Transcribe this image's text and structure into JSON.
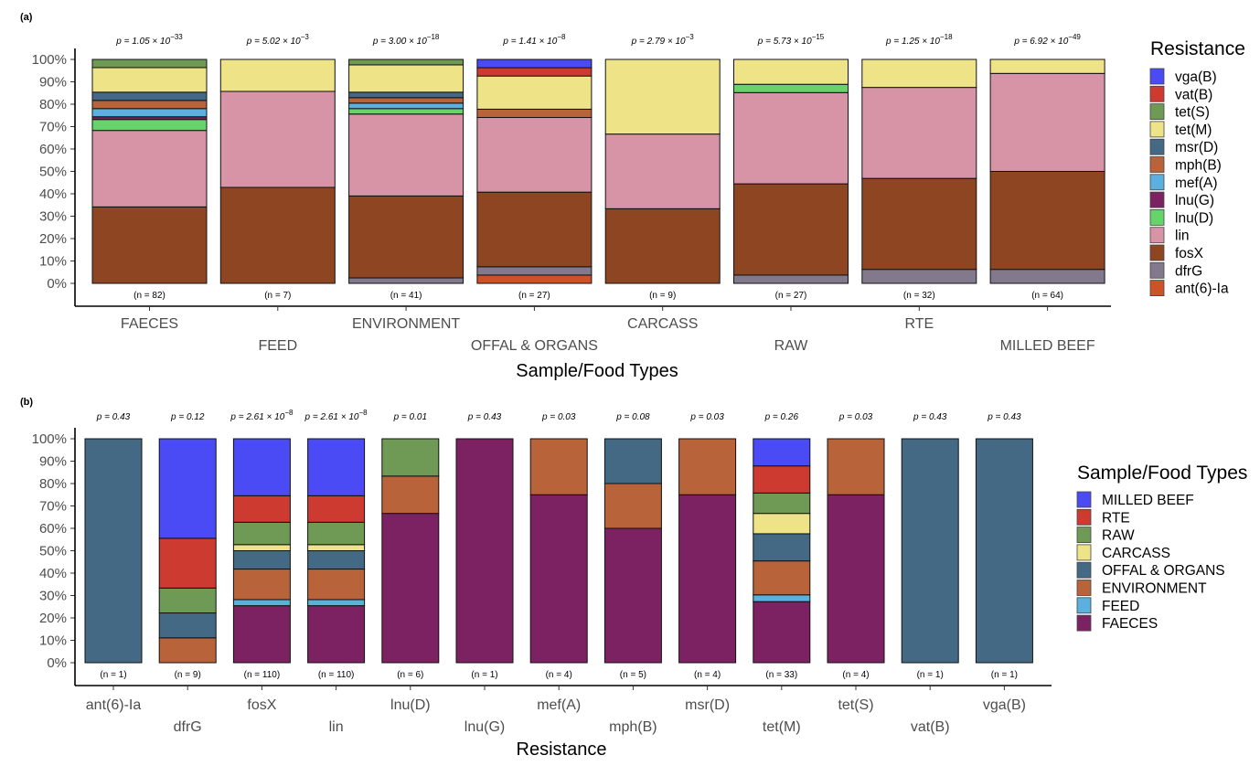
{
  "chart_data": [
    {
      "panel_label": "(a)",
      "type": "bar",
      "stacking": "percent",
      "xlabel": "Sample/Food Types",
      "ylabel": "",
      "ylim": [
        0,
        100
      ],
      "y_ticks": [
        "0%",
        "10%",
        "20%",
        "30%",
        "40%",
        "50%",
        "60%",
        "70%",
        "80%",
        "90%",
        "100%"
      ],
      "grid": false,
      "legend_title": "Resistance",
      "legend_position": "right",
      "categories": [
        "FAECES",
        "FEED",
        "ENVIRONMENT",
        "OFFAL & ORGANS",
        "CARCASS",
        "RAW",
        "RTE",
        "MILLED BEEF"
      ],
      "n_labels": [
        "(n = 82)",
        "(n = 7)",
        "(n = 41)",
        "(n = 27)",
        "(n = 9)",
        "(n = 27)",
        "(n = 32)",
        "(n = 64)"
      ],
      "p_values": [
        {
          "base": "p = 1.05 × 10",
          "exp": "−33"
        },
        {
          "base": "p = 5.02 × 10",
          "exp": "−3"
        },
        {
          "base": "p = 3.00 × 10",
          "exp": "−18"
        },
        {
          "base": "p = 1.41 × 10",
          "exp": "−8"
        },
        {
          "base": "p = 2.79 × 10",
          "exp": "−3"
        },
        {
          "base": "p = 5.73 × 10",
          "exp": "−15"
        },
        {
          "base": "p = 1.25 × 10",
          "exp": "−18"
        },
        {
          "base": "p = 6.92 × 10",
          "exp": "−49"
        }
      ],
      "series": [
        {
          "name": "ant(6)-Ia",
          "color": "#cf5227",
          "values": [
            0,
            0,
            0,
            1,
            0,
            0,
            0,
            0
          ]
        },
        {
          "name": "dfrG",
          "color": "#83798d",
          "values": [
            0,
            0,
            1,
            1,
            0,
            1,
            2,
            4
          ]
        },
        {
          "name": "fosX",
          "color": "#8e4622",
          "values": [
            28,
            3,
            15,
            9,
            3,
            11,
            13,
            28
          ]
        },
        {
          "name": "lin",
          "color": "#d694a6",
          "values": [
            28,
            3,
            15,
            9,
            3,
            11,
            13,
            28
          ]
        },
        {
          "name": "lnu(D)",
          "color": "#67d36a",
          "values": [
            4,
            0,
            1,
            0,
            0,
            1,
            0,
            0
          ]
        },
        {
          "name": "lnu(G)",
          "color": "#7c2263",
          "values": [
            1,
            0,
            0,
            0,
            0,
            0,
            0,
            0
          ]
        },
        {
          "name": "mef(A)",
          "color": "#5bb0dd",
          "values": [
            3,
            0,
            1,
            0,
            0,
            0,
            0,
            0
          ]
        },
        {
          "name": "mph(B)",
          "color": "#b8633a",
          "values": [
            3,
            0,
            1,
            1,
            0,
            0,
            0,
            0
          ]
        },
        {
          "name": "msr(D)",
          "color": "#436985",
          "values": [
            3,
            0,
            1,
            0,
            0,
            0,
            0,
            0
          ]
        },
        {
          "name": "tet(M)",
          "color": "#efe388",
          "values": [
            9,
            1,
            5,
            4,
            3,
            3,
            4,
            4
          ]
        },
        {
          "name": "tet(S)",
          "color": "#6e9a55",
          "values": [
            3,
            0,
            1,
            0,
            0,
            0,
            0,
            0
          ]
        },
        {
          "name": "vat(B)",
          "color": "#cd3a30",
          "values": [
            0,
            0,
            0,
            1,
            0,
            0,
            0,
            0
          ]
        },
        {
          "name": "vga(B)",
          "color": "#4b4bf5",
          "values": [
            0,
            0,
            0,
            1,
            0,
            0,
            0,
            0
          ]
        }
      ]
    },
    {
      "panel_label": "(b)",
      "type": "bar",
      "stacking": "percent",
      "xlabel": "Resistance",
      "ylabel": "",
      "ylim": [
        0,
        100
      ],
      "y_ticks": [
        "0%",
        "10%",
        "20%",
        "30%",
        "40%",
        "50%",
        "60%",
        "70%",
        "80%",
        "90%",
        "100%"
      ],
      "grid": false,
      "legend_title": "Sample/Food Types",
      "legend_position": "right",
      "categories": [
        "ant(6)-Ia",
        "dfrG",
        "fosX",
        "lin",
        "lnu(D)",
        "lnu(G)",
        "mef(A)",
        "mph(B)",
        "msr(D)",
        "tet(M)",
        "tet(S)",
        "vat(B)",
        "vga(B)"
      ],
      "n_labels": [
        "(n = 1)",
        "(n = 9)",
        "(n = 110)",
        "(n = 110)",
        "(n = 6)",
        "(n = 1)",
        "(n = 4)",
        "(n = 5)",
        "(n = 4)",
        "(n = 33)",
        "(n = 4)",
        "(n = 1)",
        "(n = 1)"
      ],
      "p_values": [
        {
          "base": "p = 0.43",
          "exp": ""
        },
        {
          "base": "p = 0.12",
          "exp": ""
        },
        {
          "base": "p = 2.61 × 10",
          "exp": "−8"
        },
        {
          "base": "p = 2.61 × 10",
          "exp": "−8"
        },
        {
          "base": "p = 0.01",
          "exp": ""
        },
        {
          "base": "p = 0.43",
          "exp": ""
        },
        {
          "base": "p = 0.03",
          "exp": ""
        },
        {
          "base": "p = 0.08",
          "exp": ""
        },
        {
          "base": "p = 0.03",
          "exp": ""
        },
        {
          "base": "p = 0.26",
          "exp": ""
        },
        {
          "base": "p = 0.03",
          "exp": ""
        },
        {
          "base": "p = 0.43",
          "exp": ""
        },
        {
          "base": "p = 0.43",
          "exp": ""
        }
      ],
      "series": [
        {
          "name": "FAECES",
          "color": "#7c2263",
          "values": [
            0,
            0,
            28,
            28,
            4,
            1,
            3,
            3,
            3,
            9,
            3,
            0,
            0
          ]
        },
        {
          "name": "FEED",
          "color": "#5bb0dd",
          "values": [
            0,
            0,
            3,
            3,
            0,
            0,
            0,
            0,
            0,
            1,
            0,
            0,
            0
          ]
        },
        {
          "name": "ENVIRONMENT",
          "color": "#b8633a",
          "values": [
            0,
            1,
            15,
            15,
            1,
            0,
            1,
            1,
            1,
            5,
            1,
            0,
            0
          ]
        },
        {
          "name": "OFFAL & ORGANS",
          "color": "#436985",
          "values": [
            1,
            1,
            9,
            9,
            0,
            0,
            0,
            1,
            0,
            4,
            0,
            1,
            1
          ]
        },
        {
          "name": "CARCASS",
          "color": "#efe388",
          "values": [
            0,
            0,
            3,
            3,
            0,
            0,
            0,
            0,
            0,
            3,
            0,
            0,
            0
          ]
        },
        {
          "name": "RAW",
          "color": "#6e9a55",
          "values": [
            0,
            1,
            11,
            11,
            1,
            0,
            0,
            0,
            0,
            3,
            0,
            0,
            0
          ]
        },
        {
          "name": "RTE",
          "color": "#cd3a30",
          "values": [
            0,
            2,
            13,
            13,
            0,
            0,
            0,
            0,
            0,
            4,
            0,
            0,
            0
          ]
        },
        {
          "name": "MILLED BEEF",
          "color": "#4b4bf5",
          "values": [
            0,
            4,
            28,
            28,
            0,
            0,
            0,
            0,
            0,
            4,
            0,
            0,
            0
          ]
        }
      ]
    }
  ]
}
